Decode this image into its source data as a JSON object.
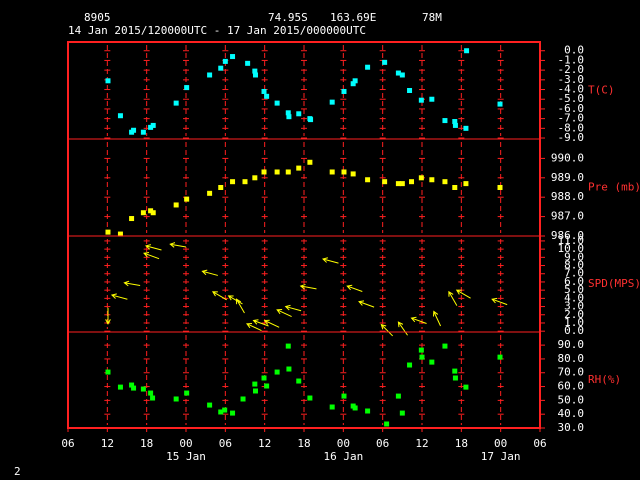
{
  "header": {
    "station": "8905",
    "lat": "74.95S",
    "lon": "163.69E",
    "elev": "78M",
    "period": "14 Jan 2015/120000UTC - 17 Jan 2015/000000UTC",
    "footer": "2"
  },
  "chart_data": [
    {
      "type": "scatter",
      "ylabel": "T(C)",
      "color": "#00ffff",
      "xlim": [
        0,
        72
      ],
      "xticks": [
        0,
        6,
        12,
        18,
        24,
        30,
        36,
        42,
        48,
        54,
        60,
        66,
        72
      ],
      "ylim": [
        -9.1,
        0.9
      ],
      "yticks": [
        {
          "value": 0,
          "label": "0.0"
        },
        {
          "value": -1,
          "label": "-1.0"
        },
        {
          "value": -2,
          "label": "-2.0"
        },
        {
          "value": -3,
          "label": "-3.0"
        },
        {
          "value": -4,
          "label": "-4.0"
        },
        {
          "value": -5,
          "label": "-5.0"
        },
        {
          "value": -6,
          "label": "-6.0"
        },
        {
          "value": -7,
          "label": "-7.0"
        },
        {
          "value": -8,
          "label": "-8.0"
        },
        {
          "value": -9,
          "label": "-9.0"
        }
      ],
      "x": [
        6.1,
        8.0,
        9.7,
        10.0,
        11.5,
        12.6,
        13.0,
        16.5,
        18.1,
        21.6,
        23.3,
        24.0,
        25.1,
        27.4,
        28.5,
        28.6,
        29.9,
        30.3,
        31.9,
        33.6,
        33.7,
        35.2,
        36.9,
        37.0,
        40.3,
        42.1,
        43.5,
        43.8,
        45.7,
        48.3,
        50.4,
        51.0,
        52.1,
        53.9,
        55.5,
        57.5,
        59.0,
        59.1,
        60.7,
        60.8,
        65.9
      ],
      "values": [
        -3.1,
        -6.7,
        -8.4,
        -8.2,
        -8.4,
        -7.9,
        -7.7,
        -5.4,
        -3.8,
        -2.5,
        -1.8,
        -1.1,
        -0.6,
        -1.3,
        -2.1,
        -2.5,
        -4.2,
        -4.7,
        -5.4,
        -6.4,
        -6.8,
        -6.5,
        -7.0,
        -7.1,
        -5.3,
        -4.2,
        -3.4,
        -3.1,
        -1.7,
        -1.2,
        -2.3,
        -2.5,
        -4.1,
        -5.1,
        -5.0,
        -7.2,
        -7.3,
        -7.7,
        -8.0,
        0.0,
        -5.5
      ]
    },
    {
      "type": "scatter",
      "ylabel": "Pre (mb)",
      "color": "#ffff00",
      "xlim": [
        0,
        72
      ],
      "xticks": [
        0,
        6,
        12,
        18,
        24,
        30,
        36,
        42,
        48,
        54,
        60,
        66,
        72
      ],
      "ylim": [
        986,
        991
      ],
      "yticks": [
        {
          "value": 990,
          "label": "990.0"
        },
        {
          "value": 989,
          "label": "989.0"
        },
        {
          "value": 988,
          "label": "988.0"
        },
        {
          "value": 987,
          "label": "987.0"
        },
        {
          "value": 986,
          "label": "986.0"
        }
      ],
      "x": [
        6.1,
        8.0,
        9.7,
        11.5,
        12.6,
        13.0,
        16.5,
        18.1,
        21.6,
        23.3,
        25.1,
        27.0,
        28.5,
        29.9,
        31.9,
        33.6,
        35.2,
        36.9,
        40.3,
        42.1,
        43.5,
        45.7,
        48.3,
        50.4,
        51.0,
        52.4,
        53.9,
        55.5,
        57.5,
        59.0,
        60.7,
        65.9
      ],
      "values": [
        986.2,
        986.1,
        986.9,
        987.2,
        987.3,
        987.2,
        987.6,
        987.9,
        988.2,
        988.5,
        988.8,
        988.8,
        989.0,
        989.3,
        989.3,
        989.3,
        989.5,
        989.8,
        989.3,
        989.3,
        989.2,
        988.9,
        988.8,
        988.7,
        988.7,
        988.8,
        989.0,
        988.9,
        988.8,
        988.5,
        988.7,
        988.5
      ]
    },
    {
      "type": "vector",
      "ylabel": "SPD(MPS)",
      "color": "#ffff00",
      "xlim": [
        0,
        72
      ],
      "xticks": [
        0,
        6,
        12,
        18,
        24,
        30,
        36,
        42,
        48,
        54,
        60,
        66,
        72
      ],
      "ylim": [
        -0.1,
        11.6
      ],
      "yticks": [
        {
          "value": 11,
          "label": "11.0"
        },
        {
          "value": 10,
          "label": "10.0"
        },
        {
          "value": 9,
          "label": "9.0"
        },
        {
          "value": 8,
          "label": "8.0"
        },
        {
          "value": 7,
          "label": "7.0"
        },
        {
          "value": 6,
          "label": "6.0"
        },
        {
          "value": 5,
          "label": "5.0"
        },
        {
          "value": 4,
          "label": "4.0"
        },
        {
          "value": 3,
          "label": "3.0"
        },
        {
          "value": 2,
          "label": "2.0"
        },
        {
          "value": 1,
          "label": "1.0"
        },
        {
          "value": 0,
          "label": "0.0"
        }
      ],
      "x": [
        6.1,
        6.7,
        8.6,
        11.6,
        11.9,
        15.6,
        20.5,
        22.1,
        24.5,
        25.7,
        27.3,
        28.3,
        30.0,
        31.9,
        33.2,
        35.5,
        38.9,
        42.6,
        44.4,
        47.8,
        50.4,
        52.4,
        55.8,
        58.1,
        59.3,
        64.7
      ],
      "values": [
        0.9,
        4.4,
        5.9,
        9.5,
        10.4,
        10.6,
        7.3,
        4.8,
        4.3,
        3.9,
        0.9,
        1.3,
        1.3,
        2.6,
        3.0,
        5.5,
        8.8,
        5.5,
        3.6,
        0.8,
        1.1,
        1.6,
        2.4,
        4.8,
        5.0,
        3.9
      ],
      "directions": [
        270,
        165,
        170,
        160,
        165,
        170,
        165,
        150,
        150,
        120,
        155,
        160,
        155,
        155,
        165,
        170,
        165,
        160,
        160,
        135,
        125,
        160,
        115,
        120,
        150,
        160
      ]
    },
    {
      "type": "scatter",
      "ylabel": "RH(%)",
      "color": "#00ff00",
      "xlim": [
        0,
        72
      ],
      "xticks": [
        {
          "value": 0,
          "label": "06"
        },
        {
          "value": 6,
          "label": "12"
        },
        {
          "value": 12,
          "label": "18"
        },
        {
          "value": 18,
          "label": "00"
        },
        {
          "value": 24,
          "label": "06"
        },
        {
          "value": 30,
          "label": "12"
        },
        {
          "value": 36,
          "label": "18"
        },
        {
          "value": 42,
          "label": "00"
        },
        {
          "value": 48,
          "label": "06"
        },
        {
          "value": 54,
          "label": "12"
        },
        {
          "value": 60,
          "label": "18"
        },
        {
          "value": 66,
          "label": "00"
        },
        {
          "value": 72,
          "label": "06"
        }
      ],
      "date_labels": [
        {
          "value": 18,
          "label": "15 Jan"
        },
        {
          "value": 42,
          "label": "16 Jan"
        },
        {
          "value": 66,
          "label": "17 Jan"
        }
      ],
      "ylim": [
        30,
        99.5
      ],
      "yticks": [
        {
          "value": 90,
          "label": "90.0"
        },
        {
          "value": 80,
          "label": "80.0"
        },
        {
          "value": 70,
          "label": "70.0"
        },
        {
          "value": 60,
          "label": "60.0"
        },
        {
          "value": 50,
          "label": "50.0"
        },
        {
          "value": 40,
          "label": "40.0"
        },
        {
          "value": 30,
          "label": "30.0"
        }
      ],
      "x": [
        6.1,
        8.0,
        9.7,
        10.0,
        11.5,
        12.6,
        12.9,
        16.5,
        18.1,
        21.6,
        23.3,
        23.9,
        25.1,
        26.7,
        28.5,
        28.6,
        29.9,
        30.3,
        31.9,
        33.6,
        33.7,
        35.2,
        36.9,
        40.3,
        42.1,
        43.5,
        43.8,
        45.7,
        48.6,
        50.4,
        51.0,
        52.1,
        53.9,
        54.0,
        55.5,
        57.5,
        59.0,
        59.1,
        60.7,
        65.9
      ],
      "values": [
        70.5,
        59.6,
        61.1,
        58.9,
        58.2,
        55.3,
        51.7,
        51.0,
        55.3,
        46.6,
        41.6,
        43.0,
        40.8,
        51.0,
        61.8,
        56.8,
        66.2,
        60.4,
        70.5,
        89.3,
        72.7,
        64.0,
        51.7,
        45.2,
        53.1,
        45.9,
        44.5,
        42.3,
        32.9,
        53.1,
        40.8,
        75.6,
        86.4,
        81.3,
        77.7,
        89.3,
        71.2,
        66.2,
        59.6,
        81.3
      ]
    }
  ]
}
